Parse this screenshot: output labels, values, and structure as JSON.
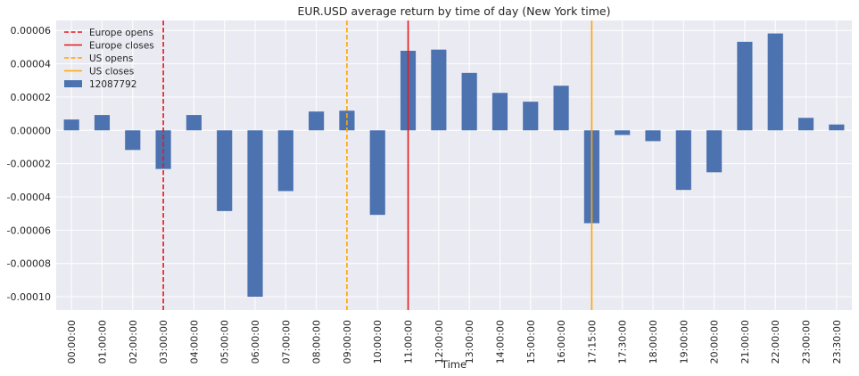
{
  "chart_data": {
    "type": "bar",
    "title": "EUR.USD average return by time of day (New York time)",
    "xlabel": "Time",
    "ylabel": "",
    "ylim": [
      -0.000108,
      6.6e-05
    ],
    "yticks": [
      -0.0001,
      -8e-05,
      -6e-05,
      -4e-05,
      -2e-05,
      0.0,
      2e-05,
      4e-05,
      6e-05
    ],
    "ytick_labels": [
      "-0.00010",
      "-0.00008",
      "-0.00006",
      "-0.00004",
      "-0.00002",
      "0.00000",
      "0.00002",
      "0.00004",
      "0.00006"
    ],
    "grid": true,
    "legend_position": "top-left",
    "categories": [
      "00:00:00",
      "01:00:00",
      "02:00:00",
      "03:00:00",
      "04:00:00",
      "05:00:00",
      "06:00:00",
      "07:00:00",
      "08:00:00",
      "09:00:00",
      "10:00:00",
      "11:00:00",
      "12:00:00",
      "13:00:00",
      "14:00:00",
      "15:00:00",
      "16:00:00",
      "17:15:00",
      "17:30:00",
      "18:00:00",
      "19:00:00",
      "20:00:00",
      "21:00:00",
      "22:00:00",
      "23:00:00",
      "23:30:00"
    ],
    "series": [
      {
        "name": "12087792",
        "color": "#4c72b0",
        "values": [
          6.5e-06,
          9.2e-06,
          -1.18e-05,
          -2.32e-05,
          9.2e-06,
          -4.85e-05,
          -0.0001,
          -3.65e-05,
          1.13e-05,
          1.18e-05,
          -5.08e-05,
          4.78e-05,
          4.85e-05,
          3.45e-05,
          2.25e-05,
          1.72e-05,
          2.68e-05,
          -5.58e-05,
          -2.8e-06,
          -6.5e-06,
          -3.58e-05,
          -2.52e-05,
          5.32e-05,
          5.82e-05,
          7.5e-06,
          3.5e-06
        ]
      }
    ],
    "vlines": [
      {
        "label": "Europe opens",
        "category": "03:00:00",
        "color": "#e41a1c",
        "style": "dashed"
      },
      {
        "label": "Europe closes",
        "category": "11:00:00",
        "color": "#e41a1c",
        "style": "solid"
      },
      {
        "label": "US opens",
        "category": "09:00:00",
        "color": "#ffa500",
        "style": "dashed"
      },
      {
        "label": "US closes",
        "category": "17:15:00",
        "color": "#ffa500",
        "style": "solid"
      }
    ]
  }
}
